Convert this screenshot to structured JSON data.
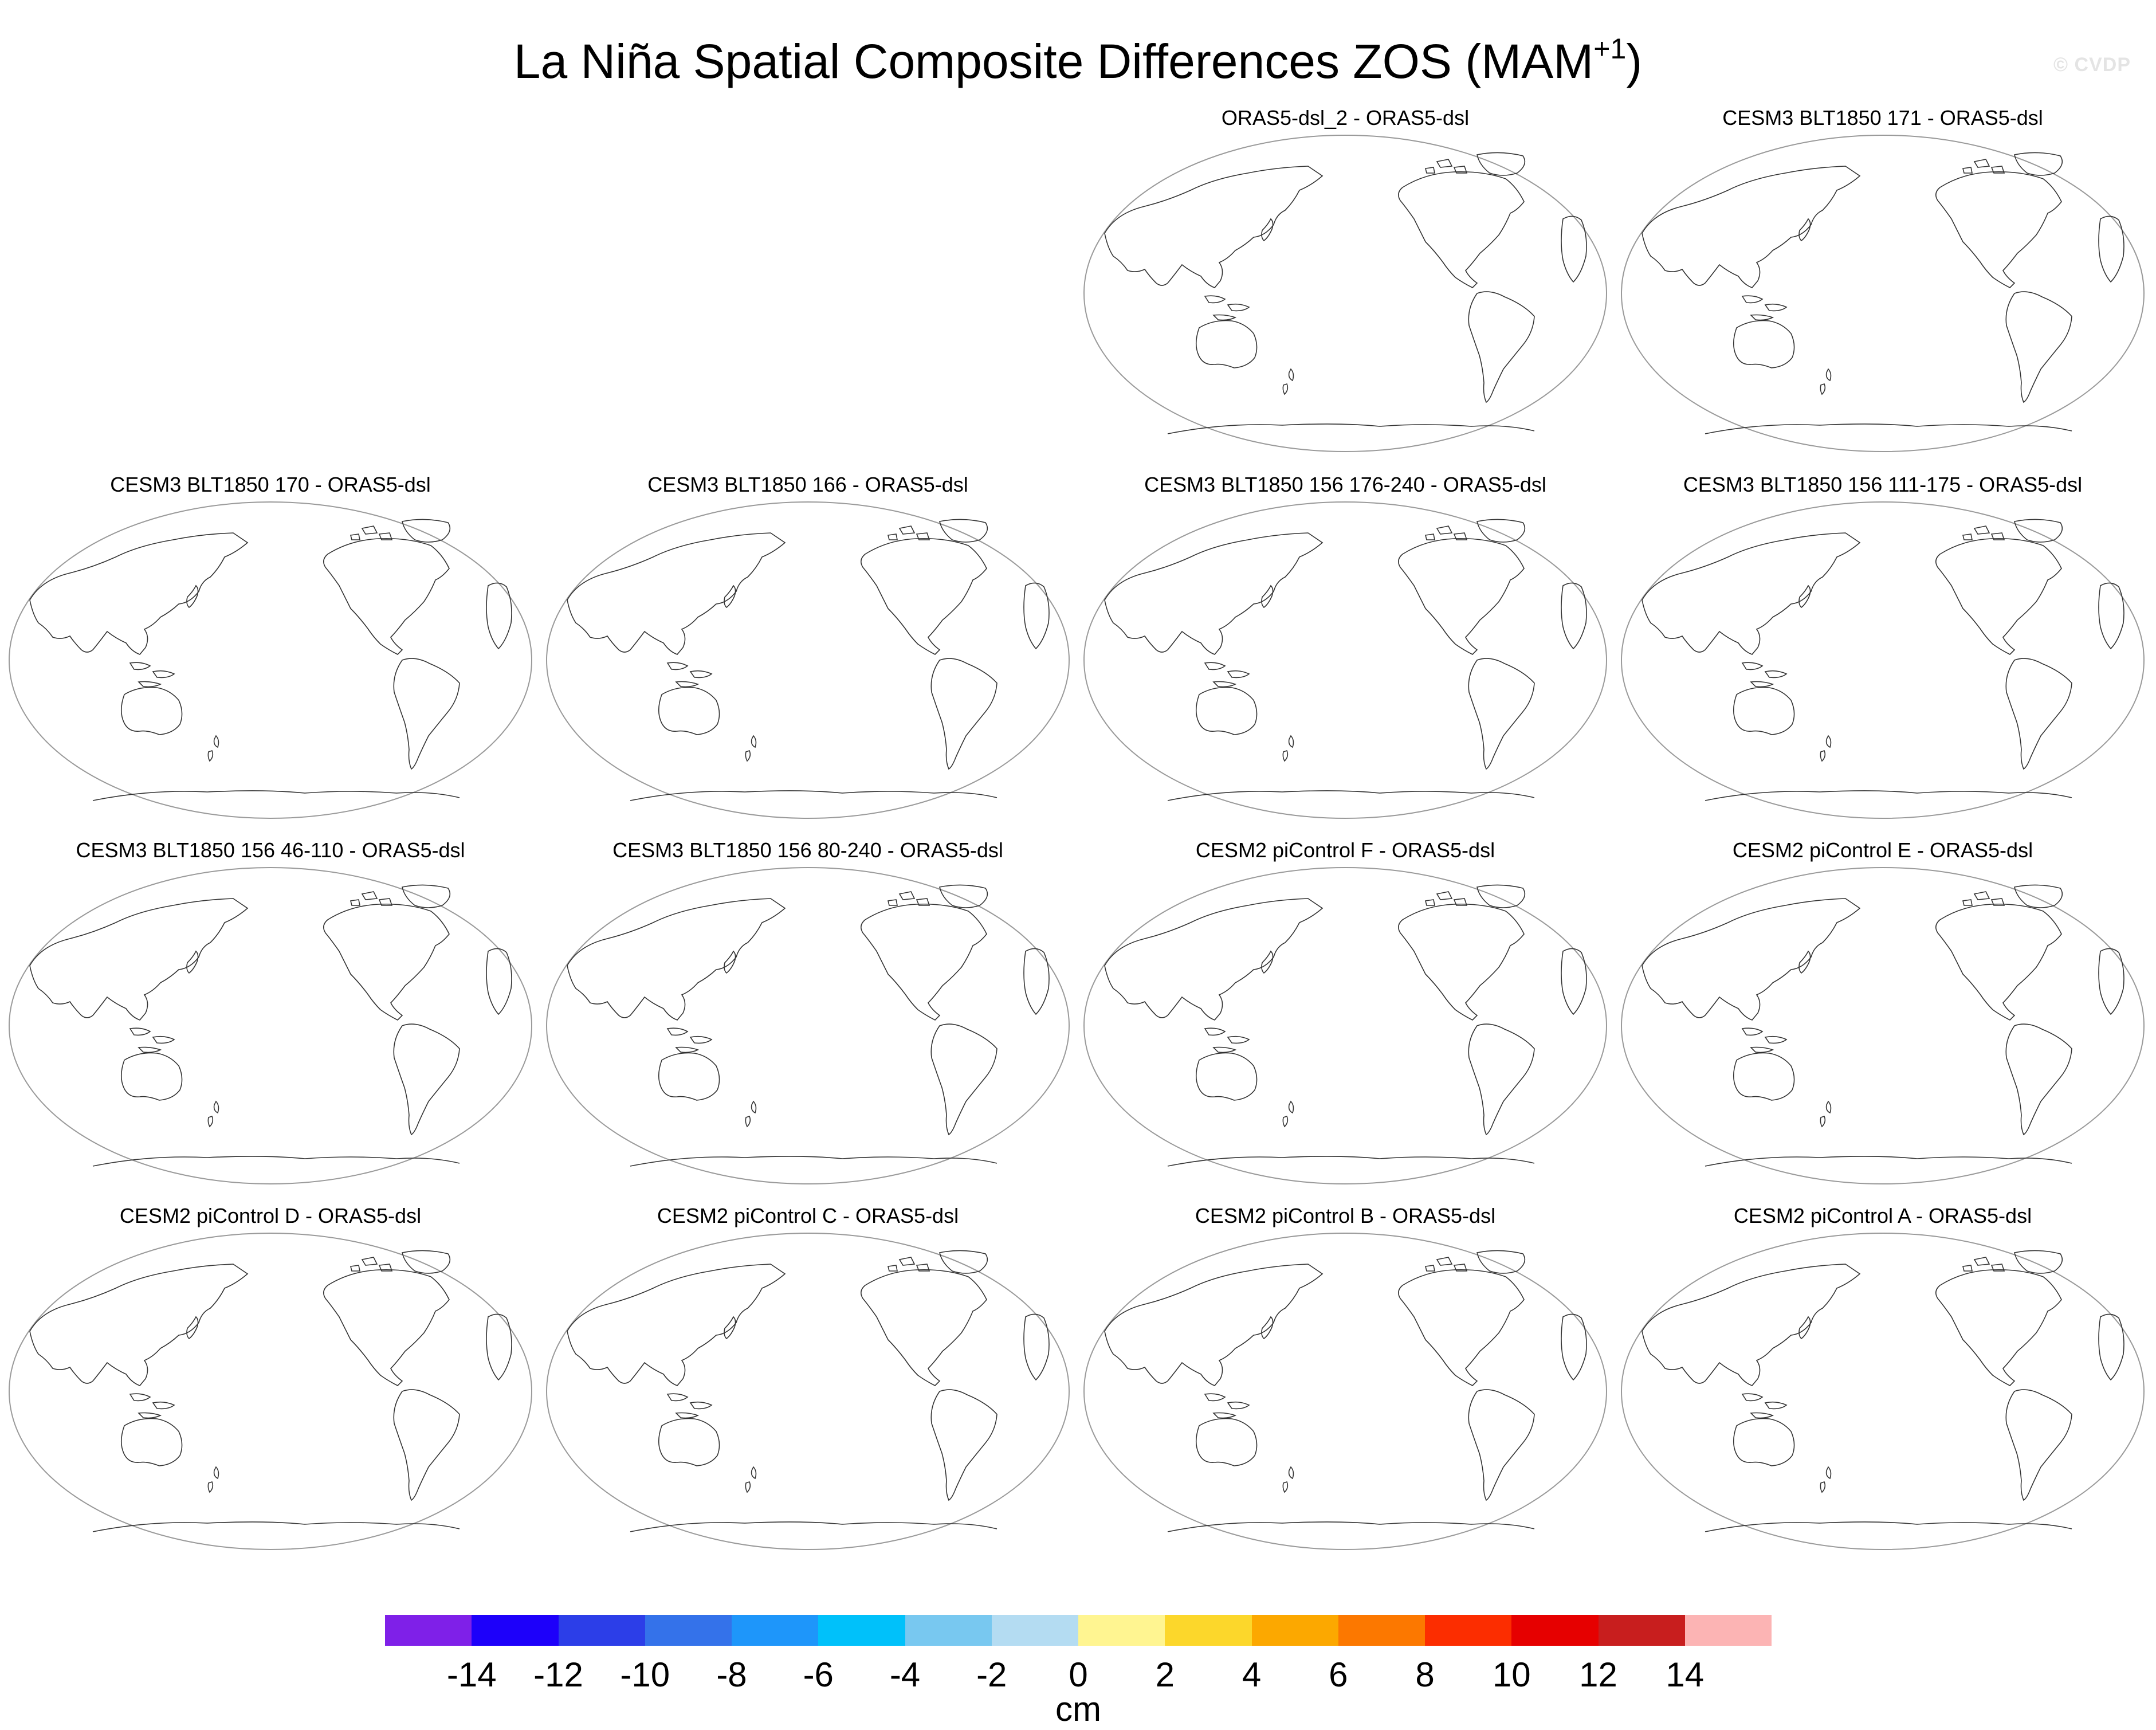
{
  "title": {
    "main": "La Niña Spatial Composite Differences ZOS (MAM",
    "superscript": "+1",
    "close": ")"
  },
  "watermark": "© CVDP",
  "panels": [
    {
      "title": "ORAS5-dsl_2 - ORAS5-dsl"
    },
    {
      "title": "CESM3 BLT1850 171 - ORAS5-dsl"
    },
    {
      "title": "CESM3 BLT1850 170 - ORAS5-dsl"
    },
    {
      "title": "CESM3 BLT1850 166 - ORAS5-dsl"
    },
    {
      "title": "CESM3 BLT1850 156 176-240 - ORAS5-dsl"
    },
    {
      "title": "CESM3 BLT1850 156 111-175 - ORAS5-dsl"
    },
    {
      "title": "CESM3 BLT1850 156 46-110 - ORAS5-dsl"
    },
    {
      "title": "CESM3 BLT1850 156 80-240 - ORAS5-dsl"
    },
    {
      "title": "CESM2 piControl F - ORAS5-dsl"
    },
    {
      "title": "CESM2 piControl E - ORAS5-dsl"
    },
    {
      "title": "CESM2 piControl D - ORAS5-dsl"
    },
    {
      "title": "CESM2 piControl C - ORAS5-dsl"
    },
    {
      "title": "CESM2 piControl B - ORAS5-dsl"
    },
    {
      "title": "CESM2 piControl A - ORAS5-dsl"
    }
  ],
  "colorbar": {
    "colors": [
      "#7f20e8",
      "#1d00fa",
      "#2c3ee8",
      "#3472ea",
      "#1e96fa",
      "#00c1fa",
      "#78c8f0",
      "#b4dcf2",
      "#fff591",
      "#fcd72b",
      "#fca800",
      "#fc7800",
      "#fc2d00",
      "#e60000",
      "#c81e1e",
      "#fcb4b4"
    ],
    "labels": [
      "-14",
      "-12",
      "-10",
      "-8",
      "-6",
      "-4",
      "-2",
      "0",
      "2",
      "4",
      "6",
      "8",
      "10",
      "12",
      "14"
    ],
    "units": "cm"
  }
}
